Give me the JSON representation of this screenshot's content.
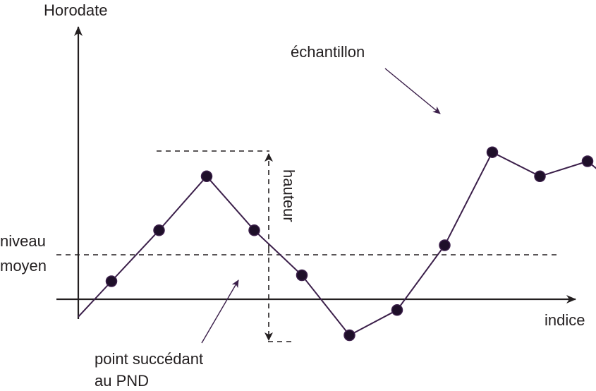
{
  "labels": {
    "y_axis": "Horodate",
    "x_axis": "indice",
    "niveau_line1": "niveau",
    "niveau_line2": "moyen",
    "hauteur": "hauteur",
    "echantillon": "échantillon",
    "point_line1": "point succédant",
    "point_line2": "au PND"
  },
  "colors": {
    "signal": "#3b1f4a",
    "axis": "#231f20",
    "dashed": "#231f20"
  },
  "series": {
    "values": [
      0.3,
      1.15,
      2.05,
      1.15,
      0.4,
      -0.6,
      -0.18,
      0.9,
      2.45,
      2.05,
      2.3
    ],
    "mean_level": 0.6
  }
}
